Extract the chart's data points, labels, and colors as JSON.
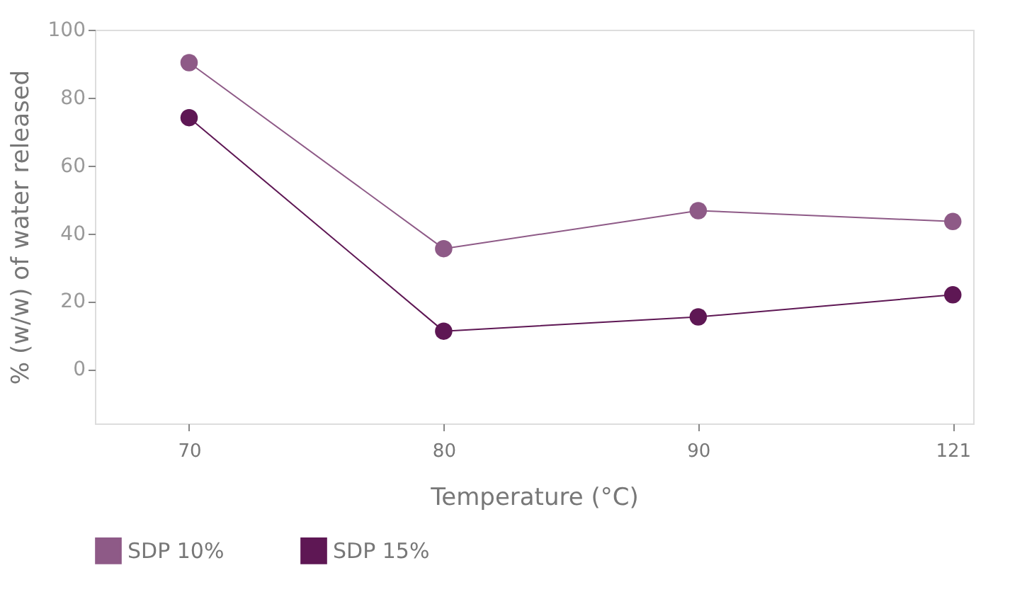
{
  "chart_data": {
    "type": "line",
    "xlabel": "Temperature (°C)",
    "ylabel": "% (w/w) of water released",
    "categories": [
      "70",
      "80",
      "90",
      "121"
    ],
    "series": [
      {
        "name": "SDP 10%",
        "color": "#8e5a87",
        "values": [
          90.3,
          35.5,
          46.7,
          43.5
        ]
      },
      {
        "name": "SDP 15%",
        "color": "#5e1754",
        "values": [
          74.1,
          11.2,
          15.4,
          21.9
        ]
      }
    ],
    "ylim": [
      -16,
      100
    ],
    "yticks": [
      0,
      20,
      40,
      60,
      80,
      100
    ],
    "grid": false,
    "legend": "bottom",
    "marker": "circle",
    "line_style": "solid"
  }
}
